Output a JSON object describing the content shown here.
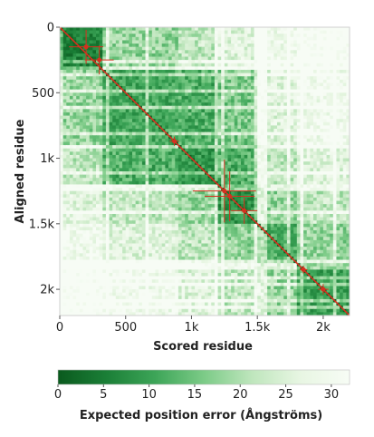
{
  "chart_data": {
    "type": "heatmap",
    "title": "",
    "xlabel": "Scored residue",
    "ylabel": "Aligned residue",
    "xlim": [
      0,
      2200
    ],
    "ylim": [
      0,
      2200
    ],
    "x_ticks": [
      {
        "value": 0,
        "label": "0"
      },
      {
        "value": 500,
        "label": "500"
      },
      {
        "value": 1000,
        "label": "1k"
      },
      {
        "value": 1500,
        "label": "1.5k"
      },
      {
        "value": 2000,
        "label": "2k"
      }
    ],
    "y_ticks": [
      {
        "value": 0,
        "label": "0"
      },
      {
        "value": 500,
        "label": "500"
      },
      {
        "value": 1000,
        "label": "1k"
      },
      {
        "value": 1500,
        "label": "1.5k"
      },
      {
        "value": 2000,
        "label": "2k"
      }
    ],
    "colorbar": {
      "label": "Expected position error (Ångströms)",
      "range": [
        0,
        32
      ],
      "ticks": [
        {
          "value": 0,
          "label": "0"
        },
        {
          "value": 5,
          "label": "5"
        },
        {
          "value": 10,
          "label": "10"
        },
        {
          "value": 15,
          "label": "15"
        },
        {
          "value": 20,
          "label": "20"
        },
        {
          "value": 25,
          "label": "25"
        },
        {
          "value": 30,
          "label": "30"
        }
      ],
      "colors": [
        "#0a5a1e",
        "#1b7f37",
        "#3da558",
        "#7ccb87",
        "#bfe6bd",
        "#e8f6e3",
        "#f7fcf5"
      ]
    },
    "domains": [
      {
        "start": 0,
        "end": 330,
        "pae": 6
      },
      {
        "start": 330,
        "end": 900,
        "pae": 11
      },
      {
        "start": 900,
        "end": 1200,
        "pae": 9
      },
      {
        "start": 1200,
        "end": 1500,
        "pae": 8
      },
      {
        "start": 1500,
        "end": 1800,
        "pae": 12
      },
      {
        "start": 1800,
        "end": 2200,
        "pae": 10
      }
    ],
    "diagonal_color": "#d7301f",
    "crosshair_markers": [
      {
        "x": 200,
        "y": 150,
        "span": 260
      },
      {
        "x": 300,
        "y": 250,
        "span": 220
      },
      {
        "x": 870,
        "y": 870,
        "span": 70
      },
      {
        "x": 1250,
        "y": 1250,
        "span": 480
      },
      {
        "x": 1290,
        "y": 1290,
        "span": 380
      },
      {
        "x": 1400,
        "y": 1400,
        "span": 200
      },
      {
        "x": 1850,
        "y": 1850,
        "span": 60
      },
      {
        "x": 2000,
        "y": 2000,
        "span": 80
      }
    ]
  }
}
